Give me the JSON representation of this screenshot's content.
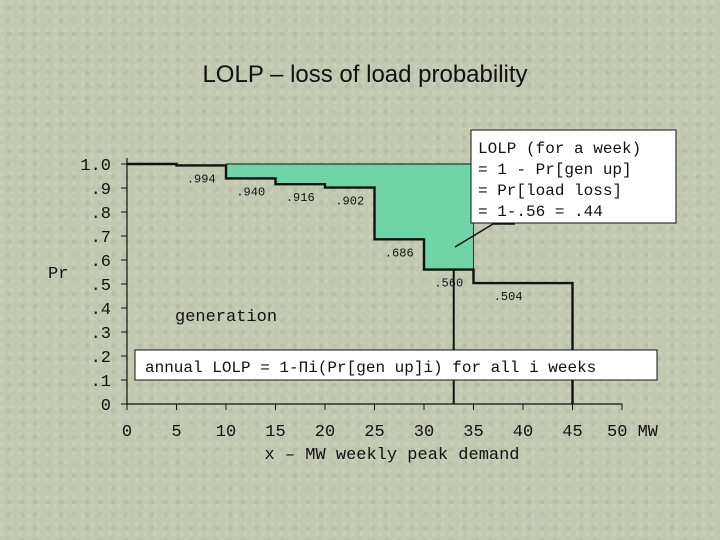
{
  "chart_data": {
    "type": "area",
    "title": "LOLP – loss of load probability",
    "xlabel": "x – MW weekly peak demand",
    "ylabel": "Pr",
    "x_ticks": [
      "0",
      "5",
      "10",
      "15",
      "20",
      "25",
      "30",
      "35",
      "40",
      "45",
      "50 MW"
    ],
    "y_ticks": [
      "1.0",
      ".9",
      ".8",
      ".7",
      ".6",
      ".5",
      ".4",
      ".3",
      ".2",
      ".1",
      "0"
    ],
    "xlim": [
      0,
      50
    ],
    "ylim": [
      0,
      1.0
    ],
    "series": [
      {
        "type": "step",
        "x": [
          0,
          5,
          10,
          15,
          20,
          25,
          30,
          35,
          45
        ],
        "y": [
          1.0,
          0.994,
          0.94,
          0.916,
          0.902,
          0.686,
          0.56,
          0.504,
          0.504
        ]
      }
    ],
    "step_labels": [
      {
        "x": 7.5,
        "y": 0.994,
        "text": ".994"
      },
      {
        "x": 12.5,
        "y": 0.94,
        "text": ".940"
      },
      {
        "x": 17.5,
        "y": 0.916,
        "text": ".916"
      },
      {
        "x": 22.5,
        "y": 0.902,
        "text": ".902"
      },
      {
        "x": 27.5,
        "y": 0.686,
        "text": ".686"
      },
      {
        "x": 32.5,
        "y": 0.56,
        "text": ".560"
      },
      {
        "x": 38.5,
        "y": 0.504,
        "text": ".504"
      }
    ],
    "shaded_region": {
      "x_from": 10,
      "x_to": 35,
      "color": "#6fd4a6"
    },
    "week_peak_demand_x": 33,
    "curve_color": "#111111",
    "legend": "none",
    "grid": false
  },
  "annotations": {
    "lolp_box": [
      "LOLP (for a week)",
      "= 1 - Pr[gen up]",
      "= Pr[load loss]",
      "= 1-.56 = .44"
    ],
    "generation_label": "generation",
    "annual_box": "annual LOLP = 1-Πi(Pr[gen up]i) for all i weeks"
  }
}
